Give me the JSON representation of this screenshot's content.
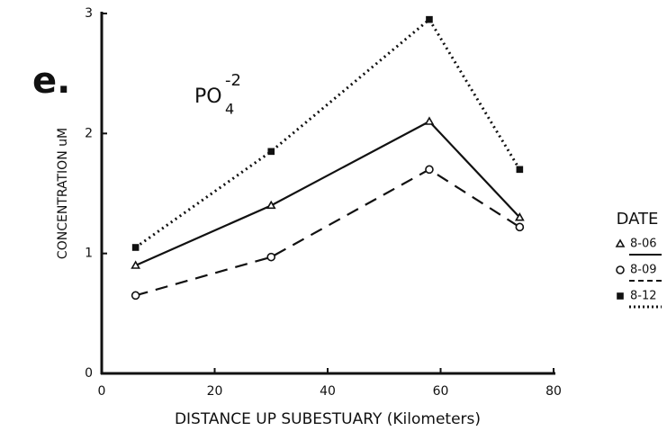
{
  "chart_data": {
    "type": "line",
    "annotation": "e.",
    "formula": {
      "base": "PO",
      "sub": "4",
      "sup": "-2"
    },
    "xlabel": "DISTANCE UP SUBESTUARY (Kilometers)",
    "ylabel": "CONCENTRATION uM",
    "legend_title": "DATE",
    "x": [
      6,
      30,
      58,
      74
    ],
    "xlim": [
      0,
      80
    ],
    "xticks": [
      0,
      20,
      40,
      60,
      80
    ],
    "ylim": [
      0,
      3
    ],
    "yticks": [
      0,
      1,
      2,
      3
    ],
    "series": [
      {
        "name": "8-06",
        "color": "#111111",
        "marker": "triangle",
        "dash": "solid",
        "values": [
          0.9,
          1.4,
          2.1,
          1.3
        ]
      },
      {
        "name": "8-09",
        "color": "#111111",
        "marker": "circle",
        "dash": "dashed",
        "values": [
          0.65,
          0.97,
          1.7,
          1.22
        ]
      },
      {
        "name": "8-12",
        "color": "#111111",
        "marker": "square",
        "dash": "dotted",
        "values": [
          1.05,
          1.85,
          2.95,
          1.7
        ]
      }
    ]
  }
}
